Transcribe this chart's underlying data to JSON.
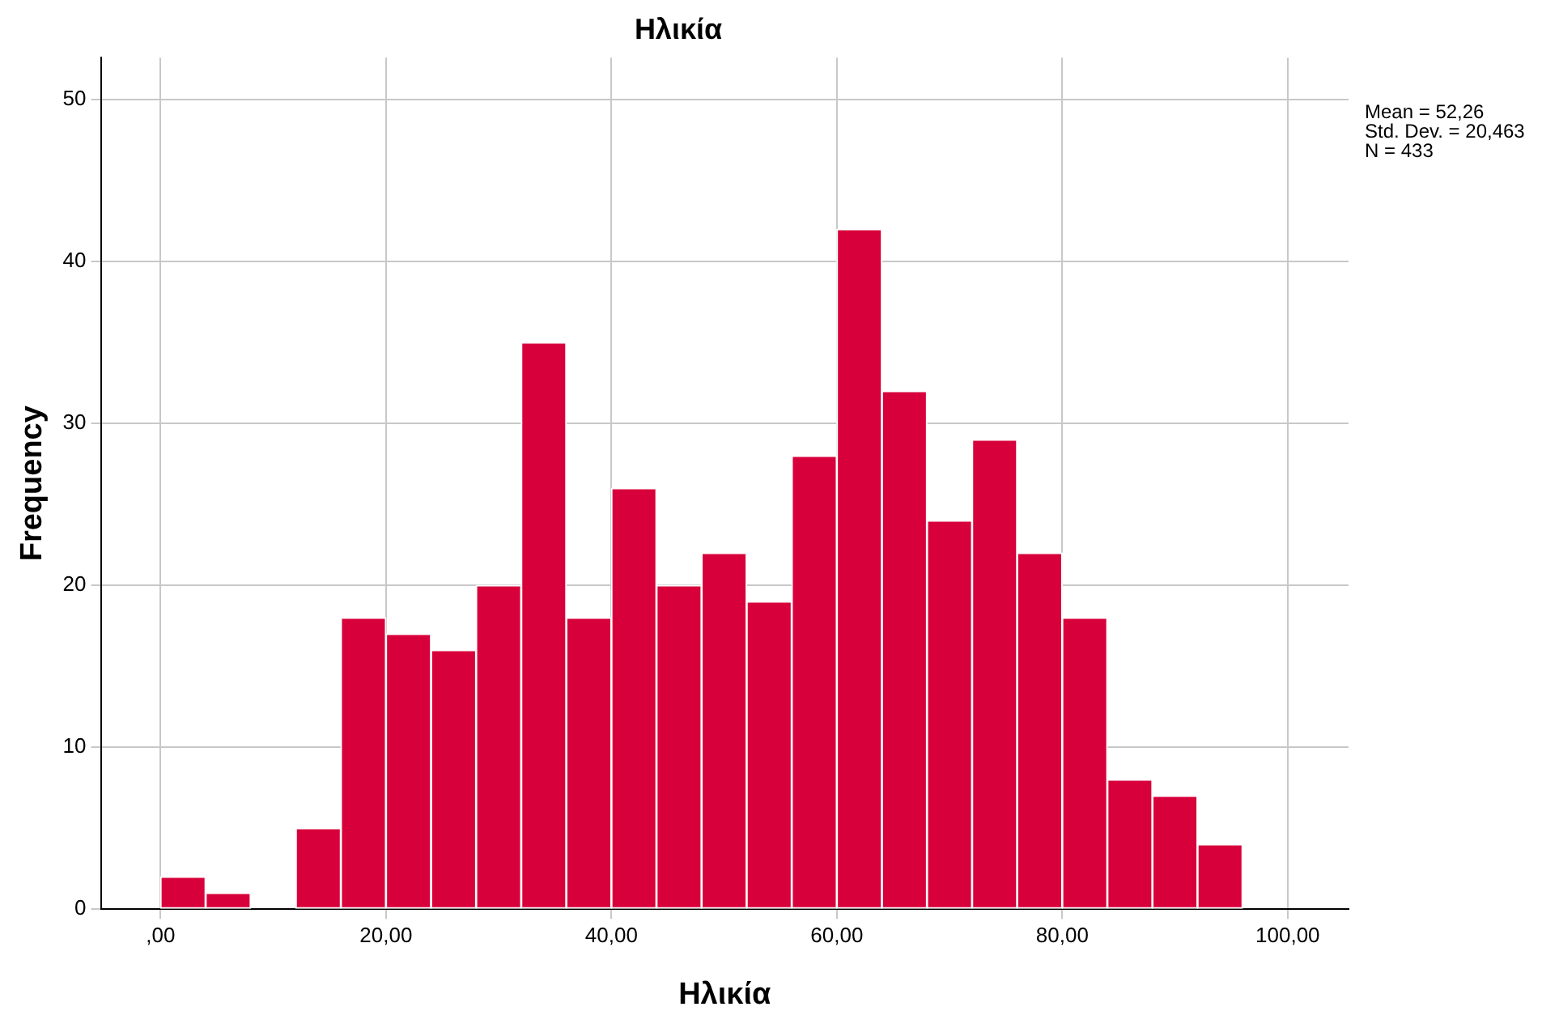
{
  "chart_data": {
    "type": "histogram",
    "title": "Ηλικία",
    "xlabel": "Ηλικία",
    "ylabel": "Frequency",
    "bins": [
      0,
      4,
      8,
      12,
      16,
      20,
      24,
      28,
      32,
      36,
      40,
      44,
      48,
      52,
      56,
      60,
      64,
      68,
      72,
      76,
      80,
      84,
      88,
      92,
      96
    ],
    "values": [
      2,
      1,
      0,
      5,
      18,
      17,
      16,
      20,
      35,
      18,
      26,
      20,
      22,
      19,
      28,
      42,
      32,
      24,
      29,
      22,
      18,
      8,
      7,
      4
    ],
    "color": "#d7003a",
    "xlim": [
      -5.3,
      105.4
    ],
    "xticks": [
      {
        "value": 0,
        "label": ",00"
      },
      {
        "value": 20,
        "label": "20,00"
      },
      {
        "value": 40,
        "label": "40,00"
      },
      {
        "value": 60,
        "label": "60,00"
      },
      {
        "value": 80,
        "label": "80,00"
      },
      {
        "value": 100,
        "label": "100,00"
      }
    ],
    "ylim": [
      0,
      52.6
    ],
    "yticks": [
      0,
      10,
      20,
      30,
      40,
      50
    ],
    "grid": true,
    "annotations": [
      "Mean = 52,26",
      "Std. Dev. = 20,463",
      "N = 433"
    ]
  }
}
